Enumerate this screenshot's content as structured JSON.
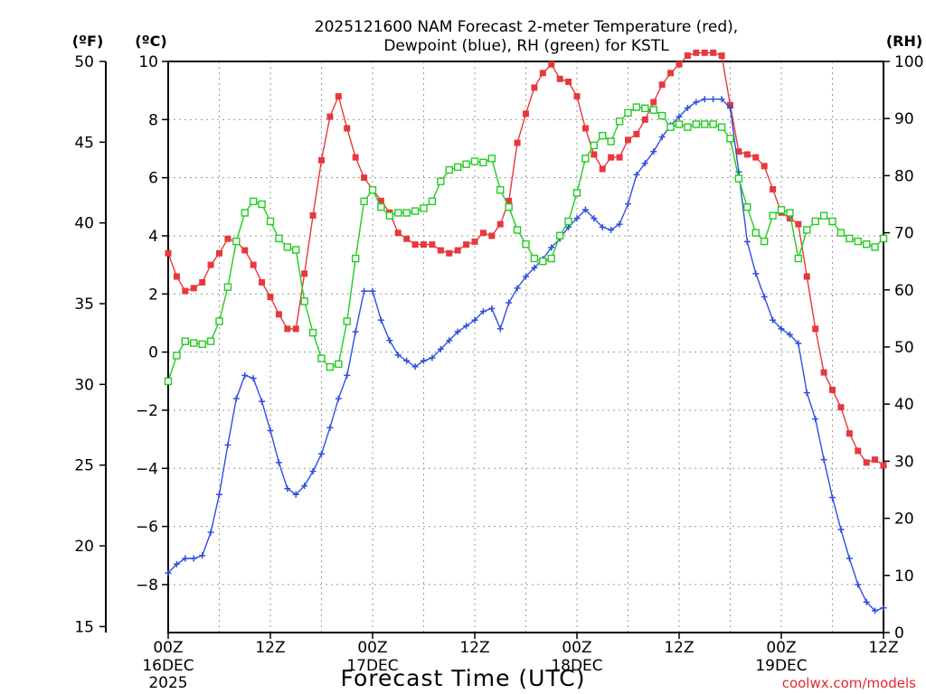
{
  "chart_data": {
    "type": "line",
    "title_line1": "2025121600 NAM Forecast 2-meter Temperature (red),",
    "title_line2": "Dewpoint (blue), RH (green) for KSTL",
    "xlabel": "Forecast Time (UTC)",
    "credit": "coolwx.com/models",
    "unit_left_f": "(ºF)",
    "unit_left_c": "(ºC)",
    "unit_right": "(RH)",
    "x_range_hours": [
      0,
      84
    ],
    "x_step_hours": 1,
    "x_ticks": [
      {
        "h": 0,
        "l1": "00Z",
        "l2": "16DEC",
        "l3": "2025"
      },
      {
        "h": 12,
        "l1": "12Z"
      },
      {
        "h": 24,
        "l1": "00Z",
        "l2": "17DEC"
      },
      {
        "h": 36,
        "l1": "12Z"
      },
      {
        "h": 48,
        "l1": "00Z",
        "l2": "18DEC"
      },
      {
        "h": 60,
        "l1": "12Z"
      },
      {
        "h": 72,
        "l1": "00Z",
        "l2": "19DEC"
      },
      {
        "h": 84,
        "l1": "12Z"
      }
    ],
    "c_range": [
      -9.65,
      10.0
    ],
    "c_ticks": [
      "10",
      "8",
      "6",
      "4",
      "2",
      "0",
      "−2",
      "−4",
      "−6",
      "−8"
    ],
    "c_tick_values": [
      10,
      8,
      6,
      4,
      2,
      0,
      -2,
      -4,
      -6,
      -8
    ],
    "f_ticks": [
      "50",
      "45",
      "40",
      "35",
      "30",
      "25",
      "20",
      "15"
    ],
    "f_tick_values": [
      50,
      45,
      40,
      35,
      30,
      25,
      20,
      15
    ],
    "rh_range": [
      0,
      100
    ],
    "rh_ticks": [
      "100",
      "90",
      "80",
      "70",
      "60",
      "50",
      "40",
      "30",
      "20",
      "10",
      "0"
    ],
    "rh_tick_values": [
      100,
      90,
      80,
      70,
      60,
      50,
      40,
      30,
      20,
      10,
      0
    ],
    "series": [
      {
        "name": "Temperature",
        "unit": "C",
        "color": "#e8383c",
        "marker": "filled-square",
        "values": [
          3.4,
          2.6,
          2.1,
          2.2,
          2.4,
          3.0,
          3.4,
          3.9,
          3.8,
          3.5,
          3.0,
          2.4,
          1.9,
          1.3,
          0.8,
          0.8,
          2.7,
          4.7,
          6.6,
          8.1,
          8.8,
          7.7,
          6.7,
          6.0,
          5.6,
          5.2,
          4.8,
          4.1,
          3.9,
          3.7,
          3.7,
          3.7,
          3.5,
          3.4,
          3.5,
          3.7,
          3.8,
          4.1,
          4.0,
          4.4,
          5.2,
          7.2,
          8.2,
          9.1,
          9.6,
          9.9,
          9.4,
          9.3,
          8.8,
          7.7,
          6.8,
          6.3,
          6.7,
          6.7,
          7.3,
          7.5,
          8.0,
          8.6,
          9.2,
          9.6,
          9.9,
          10.2,
          10.3,
          10.3,
          10.3,
          10.2,
          8.5,
          6.9,
          6.8,
          6.7,
          6.4,
          5.6,
          4.8,
          4.6,
          4.4,
          2.6,
          0.8,
          -0.7,
          -1.3,
          -1.9,
          -2.8,
          -3.4,
          -3.8,
          -3.7,
          -3.9
        ]
      },
      {
        "name": "Dewpoint",
        "unit": "C",
        "color": "#2f4fe0",
        "marker": "plus",
        "values": [
          -7.6,
          -7.3,
          -7.1,
          -7.1,
          -7.0,
          -6.2,
          -4.9,
          -3.2,
          -1.6,
          -0.8,
          -0.9,
          -1.7,
          -2.7,
          -3.8,
          -4.7,
          -4.9,
          -4.6,
          -4.1,
          -3.5,
          -2.6,
          -1.6,
          -0.8,
          0.7,
          2.1,
          2.1,
          1.1,
          0.4,
          -0.1,
          -0.3,
          -0.5,
          -0.3,
          -0.2,
          0.1,
          0.4,
          0.7,
          0.9,
          1.1,
          1.4,
          1.5,
          0.8,
          1.7,
          2.2,
          2.6,
          2.9,
          3.2,
          3.6,
          3.9,
          4.3,
          4.6,
          4.9,
          4.6,
          4.3,
          4.2,
          4.4,
          5.1,
          6.1,
          6.5,
          6.9,
          7.4,
          7.8,
          8.1,
          8.4,
          8.6,
          8.7,
          8.7,
          8.7,
          8.4,
          6.2,
          3.8,
          2.7,
          1.9,
          1.1,
          0.8,
          0.6,
          0.3,
          -1.4,
          -2.3,
          -3.7,
          -5.0,
          -6.1,
          -7.1,
          -8.0,
          -8.6,
          -8.9,
          -8.8
        ]
      },
      {
        "name": "RH",
        "unit": "%",
        "color": "#22cc22",
        "marker": "open-square",
        "values": [
          44,
          48.5,
          51,
          50.7,
          50.5,
          51,
          54.5,
          60.5,
          68.5,
          73.5,
          75.5,
          75,
          72,
          69,
          67.5,
          67,
          58,
          52.5,
          48,
          46.5,
          47,
          54.5,
          65.5,
          75.5,
          77.5,
          74.5,
          73,
          73.5,
          73.5,
          73.8,
          74.3,
          75.5,
          79,
          81,
          81.5,
          82,
          82.5,
          82.3,
          83,
          77.5,
          74.5,
          70.5,
          68,
          65.5,
          65,
          65.5,
          69.5,
          72,
          77,
          83,
          85.3,
          87,
          86,
          89.5,
          91,
          92,
          91.8,
          91.5,
          90.5,
          88.5,
          89,
          88.5,
          89,
          89,
          89,
          88.5,
          86.5,
          79.5,
          74.5,
          70,
          68.5,
          73,
          74,
          73.5,
          65.5,
          70.5,
          72,
          73,
          72,
          70,
          69,
          68.5,
          68,
          67.5,
          69
        ]
      }
    ]
  }
}
